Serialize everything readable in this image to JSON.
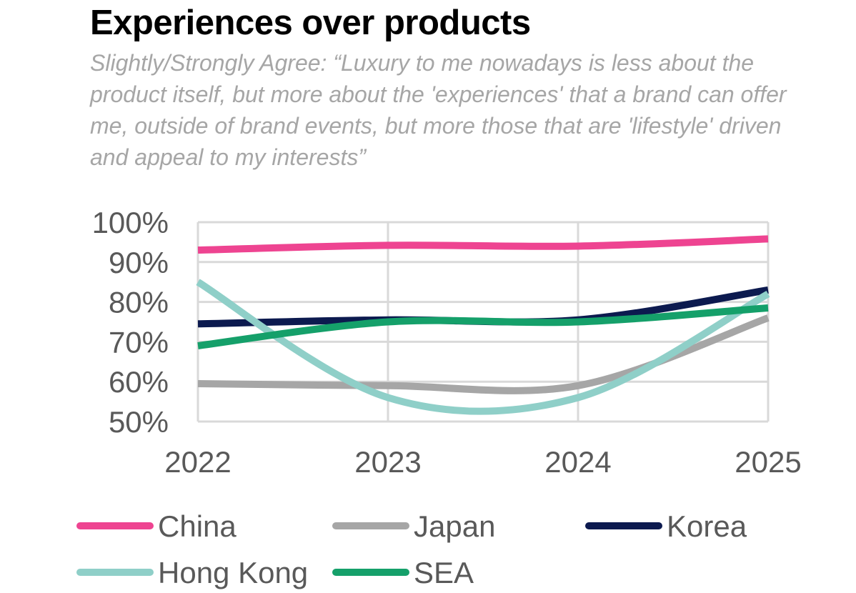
{
  "title": "Experiences over products",
  "subtitle": "Slightly/Strongly Agree: “Luxury to me nowadays is less about the product itself, but more about the 'experiences' that a brand can offer me, outside of brand events, but more those that are 'lifestyle' driven and appeal to my interests”",
  "chart_data": {
    "type": "line",
    "title": "Experiences over products",
    "subtitle": "Slightly/Strongly Agree: “Luxury to me nowadays is less about the product itself, but more about the 'experiences' that a brand can offer me, outside of brand events, but more those that are 'lifestyle' driven and appeal to my interests”",
    "xlabel": "",
    "ylabel": "",
    "x": [
      "2022",
      "2023",
      "2024",
      "2025"
    ],
    "ylim": [
      50,
      100
    ],
    "yticks": [
      "100%",
      "90%",
      "80%",
      "70%",
      "60%",
      "50%"
    ],
    "ytick_values": [
      100,
      90,
      80,
      70,
      60,
      50
    ],
    "grid": true,
    "smooth": true,
    "legend_position": "bottom",
    "series": [
      {
        "name": "China",
        "color": "#ee4491",
        "values": [
          93,
          94.2,
          94,
          95.8
        ]
      },
      {
        "name": "Japan",
        "color": "#a6a6a6",
        "values": [
          59.5,
          59,
          59,
          76
        ]
      },
      {
        "name": "Korea",
        "color": "#0c1a4f",
        "values": [
          74.5,
          75.5,
          75.5,
          83
        ]
      },
      {
        "name": "Hong Kong",
        "color": "#8fcfc8",
        "values": [
          85,
          56,
          56,
          82
        ]
      },
      {
        "name": "SEA",
        "color": "#15a06a",
        "values": [
          69,
          75,
          75,
          78.5
        ]
      }
    ]
  }
}
